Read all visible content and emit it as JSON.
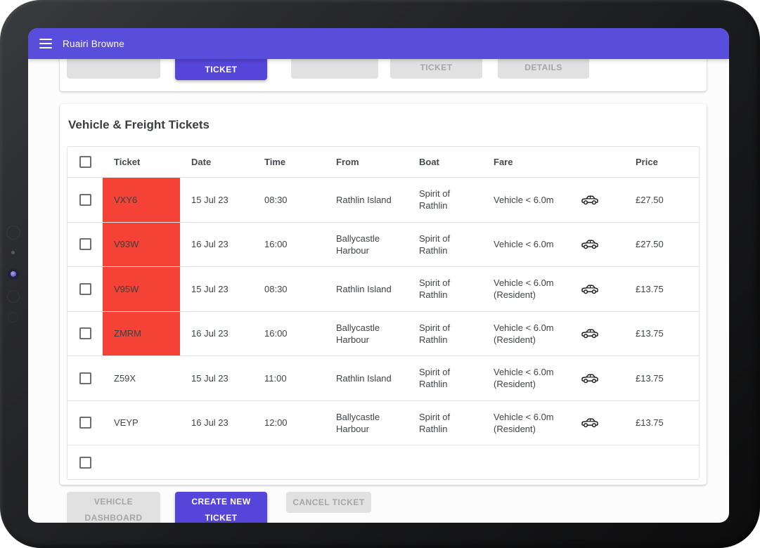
{
  "appbar": {
    "user_name": "Ruairi Browne"
  },
  "top_actions": {
    "ticket_primary_label": "TICKET",
    "ticket_muted_label": "TICKET",
    "details_label": "DETAILS"
  },
  "panel": {
    "title": "Vehicle & Freight Tickets",
    "columns": {
      "ticket": "Ticket",
      "date": "Date",
      "time": "Time",
      "from": "From",
      "boat": "Boat",
      "fare": "Fare",
      "price": "Price"
    },
    "rows": [
      {
        "ticket": "VXY6",
        "highlighted": true,
        "date": "15 Jul 23",
        "time": "08:30",
        "from": "Rathlin Island",
        "boat": "Spirit of Rathlin",
        "fare": "Vehicle < 6.0m",
        "vehicle_icon": "car-icon",
        "price": "£27.50"
      },
      {
        "ticket": "V93W",
        "highlighted": true,
        "date": "16 Jul 23",
        "time": "16:00",
        "from": "Ballycastle Harbour",
        "boat": "Spirit of Rathlin",
        "fare": "Vehicle < 6.0m",
        "vehicle_icon": "car-icon",
        "price": "£27.50"
      },
      {
        "ticket": "V95W",
        "highlighted": true,
        "date": "15 Jul 23",
        "time": "08:30",
        "from": "Rathlin Island",
        "boat": "Spirit of Rathlin",
        "fare": "Vehicle < 6.0m (Resident)",
        "vehicle_icon": "car-icon",
        "price": "£13.75"
      },
      {
        "ticket": "ZMRM",
        "highlighted": true,
        "date": "16 Jul 23",
        "time": "16:00",
        "from": "Ballycastle Harbour",
        "boat": "Spirit of Rathlin",
        "fare": "Vehicle < 6.0m (Resident)",
        "vehicle_icon": "car-icon",
        "price": "£13.75"
      },
      {
        "ticket": "Z59X",
        "highlighted": false,
        "date": "15 Jul 23",
        "time": "11:00",
        "from": "Rathlin Island",
        "boat": "Spirit of Rathlin",
        "fare": "Vehicle < 6.0m (Resident)",
        "vehicle_icon": "car-icon",
        "price": "£13.75"
      },
      {
        "ticket": "VEYP",
        "highlighted": false,
        "date": "16 Jul 23",
        "time": "12:00",
        "from": "Ballycastle Harbour",
        "boat": "Spirit of Rathlin",
        "fare": "Vehicle < 6.0m (Resident)",
        "vehicle_icon": "car-icon",
        "price": "£13.75"
      }
    ]
  },
  "bottom_actions": [
    {
      "label_lines": [
        "VEHICLE",
        "DASHBOARD"
      ],
      "variant": "muted"
    },
    {
      "label_lines": [
        "CREATE NEW",
        "TICKET"
      ],
      "variant": "primary"
    },
    {
      "label_lines": [
        "CANCEL TICKET"
      ],
      "variant": "muted"
    }
  ],
  "colors": {
    "appbar": "#584edb",
    "primary_button": "#5545d8",
    "highlight_red": "#f44336",
    "muted_button_bg": "#e1e1e1",
    "muted_button_text": "#a5a5a5"
  }
}
